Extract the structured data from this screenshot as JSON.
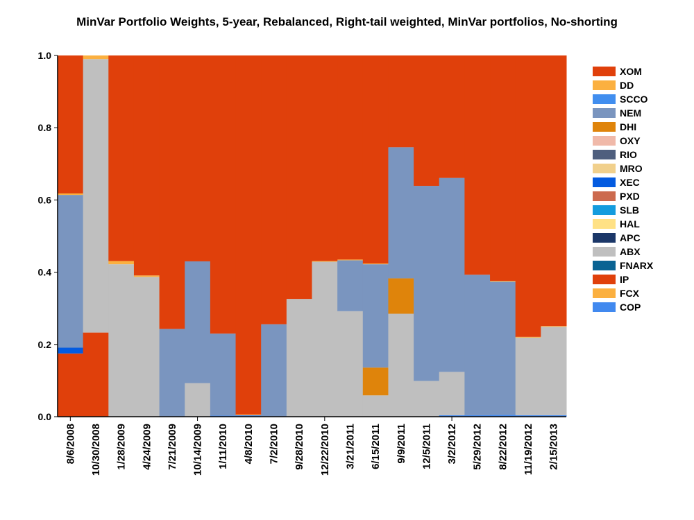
{
  "chart_data": {
    "type": "bar",
    "stacked": true,
    "title": "MinVar Portfolio Weights, 5-year, Rebalanced, Right-tail weighted, MinVar portfolios, No-shorting",
    "xlabel": "",
    "ylabel": "",
    "ylim": [
      0,
      1
    ],
    "yticks": [
      "0.0",
      "0.2",
      "0.4",
      "0.6",
      "0.8",
      "1.0"
    ],
    "legend_position": "right",
    "categories": [
      "8/6/2008",
      "10/30/2008",
      "1/28/2009",
      "4/24/2009",
      "7/21/2009",
      "10/14/2009",
      "1/11/2010",
      "4/8/2010",
      "7/2/2010",
      "9/28/2010",
      "12/22/2010",
      "3/21/2011",
      "6/15/2011",
      "9/9/2011",
      "12/5/2011",
      "3/2/2012",
      "5/29/2012",
      "8/22/2012",
      "11/19/2012",
      "2/15/2013"
    ],
    "series": [
      {
        "name": "COP",
        "color": "#4189EF",
        "values": [
          0,
          0,
          0,
          0,
          0,
          0,
          0.003,
          0.004,
          0,
          0,
          0,
          0,
          0,
          0,
          0,
          0.004,
          0.004,
          0.005,
          0.004,
          0.004
        ]
      },
      {
        "name": "FCX",
        "color": "#FBB040",
        "values": [
          0,
          0,
          0,
          0,
          0,
          0,
          0,
          0,
          0,
          0,
          0,
          0,
          0,
          0,
          0,
          0,
          0,
          0,
          0,
          0
        ]
      },
      {
        "name": "IP",
        "color": "#E0400B",
        "values": [
          0.175,
          0.233,
          0,
          0,
          0,
          0,
          0,
          0,
          0,
          0,
          0,
          0,
          0,
          0,
          0,
          0,
          0,
          0,
          0,
          0
        ]
      },
      {
        "name": "FNARX",
        "color": "#0A6393",
        "values": [
          0,
          0,
          0,
          0,
          0,
          0,
          0,
          0,
          0,
          0,
          0,
          0,
          0,
          0,
          0,
          0,
          0,
          0,
          0,
          0
        ]
      },
      {
        "name": "ABX",
        "color": "#BFBFBF",
        "values": [
          0,
          0.757,
          0.422,
          0.387,
          0,
          0.093,
          0,
          0,
          0,
          0.326,
          0.429,
          0.292,
          0.059,
          0.285,
          0.099,
          0.12,
          0,
          0,
          0.215,
          0.245
        ]
      },
      {
        "name": "APC",
        "color": "#1B3768",
        "values": [
          0,
          0,
          0,
          0,
          0,
          0,
          0,
          0,
          0,
          0,
          0,
          0,
          0,
          0,
          0,
          0,
          0,
          0,
          0,
          0
        ]
      },
      {
        "name": "HAL",
        "color": "#FFE185",
        "values": [
          0,
          0,
          0,
          0,
          0,
          0,
          0,
          0,
          0,
          0,
          0,
          0,
          0,
          0,
          0,
          0,
          0,
          0,
          0,
          0
        ]
      },
      {
        "name": "SLB",
        "color": "#149CDE",
        "values": [
          0,
          0,
          0,
          0,
          0,
          0,
          0,
          0,
          0,
          0,
          0,
          0,
          0,
          0,
          0,
          0,
          0,
          0,
          0,
          0
        ]
      },
      {
        "name": "PXD",
        "color": "#CC6A4E",
        "values": [
          0,
          0,
          0,
          0,
          0,
          0,
          0,
          0,
          0,
          0,
          0,
          0,
          0,
          0,
          0,
          0,
          0,
          0,
          0,
          0
        ]
      },
      {
        "name": "XEC",
        "color": "#045BE0",
        "values": [
          0.016,
          0,
          0,
          0,
          0,
          0,
          0,
          0,
          0,
          0,
          0,
          0,
          0,
          0,
          0,
          0,
          0,
          0,
          0,
          0
        ]
      },
      {
        "name": "MRO",
        "color": "#F1D08C",
        "values": [
          0,
          0,
          0,
          0,
          0,
          0,
          0,
          0,
          0,
          0,
          0,
          0,
          0,
          0,
          0,
          0,
          0,
          0,
          0,
          0
        ]
      },
      {
        "name": "RIO",
        "color": "#4F5F7E",
        "values": [
          0,
          0,
          0,
          0,
          0,
          0,
          0,
          0,
          0,
          0,
          0,
          0,
          0,
          0,
          0,
          0,
          0,
          0,
          0,
          0
        ]
      },
      {
        "name": "OXY",
        "color": "#F0B9A9",
        "values": [
          0,
          0,
          0,
          0,
          0,
          0,
          0,
          0,
          0,
          0,
          0,
          0,
          0,
          0,
          0,
          0,
          0,
          0,
          0,
          0
        ]
      },
      {
        "name": "DHI",
        "color": "#DF840B",
        "values": [
          0,
          0,
          0,
          0,
          0,
          0,
          0,
          0,
          0,
          0,
          0,
          0,
          0.077,
          0.098,
          0,
          0,
          0,
          0,
          0,
          0
        ]
      },
      {
        "name": "NEM",
        "color": "#7A95BF",
        "values": [
          0.423,
          0,
          0,
          0,
          0.243,
          0.337,
          0.227,
          0,
          0.256,
          0,
          0,
          0.141,
          0.286,
          0.363,
          0.54,
          0.537,
          0.389,
          0.369,
          0,
          0
        ]
      },
      {
        "name": "SCCO",
        "color": "#418EEF",
        "values": [
          0,
          0,
          0,
          0,
          0,
          0,
          0,
          0,
          0,
          0,
          0,
          0,
          0,
          0,
          0,
          0,
          0,
          0,
          0,
          0
        ]
      },
      {
        "name": "DD",
        "color": "#FBB040",
        "values": [
          0.004,
          0.01,
          0.009,
          0.004,
          0,
          0,
          0,
          0.002,
          0,
          0,
          0.002,
          0.002,
          0.002,
          0,
          0,
          0,
          0,
          0.002,
          0.002,
          0.002
        ]
      },
      {
        "name": "XOM",
        "color": "#E0400B",
        "values": [
          0.382,
          0,
          0.569,
          0.609,
          0.757,
          0.57,
          0.77,
          0.994,
          0.744,
          0.674,
          0.569,
          0.565,
          0.576,
          0.254,
          0.361,
          0.339,
          0.607,
          0.624,
          0.779,
          0.749
        ]
      }
    ]
  }
}
